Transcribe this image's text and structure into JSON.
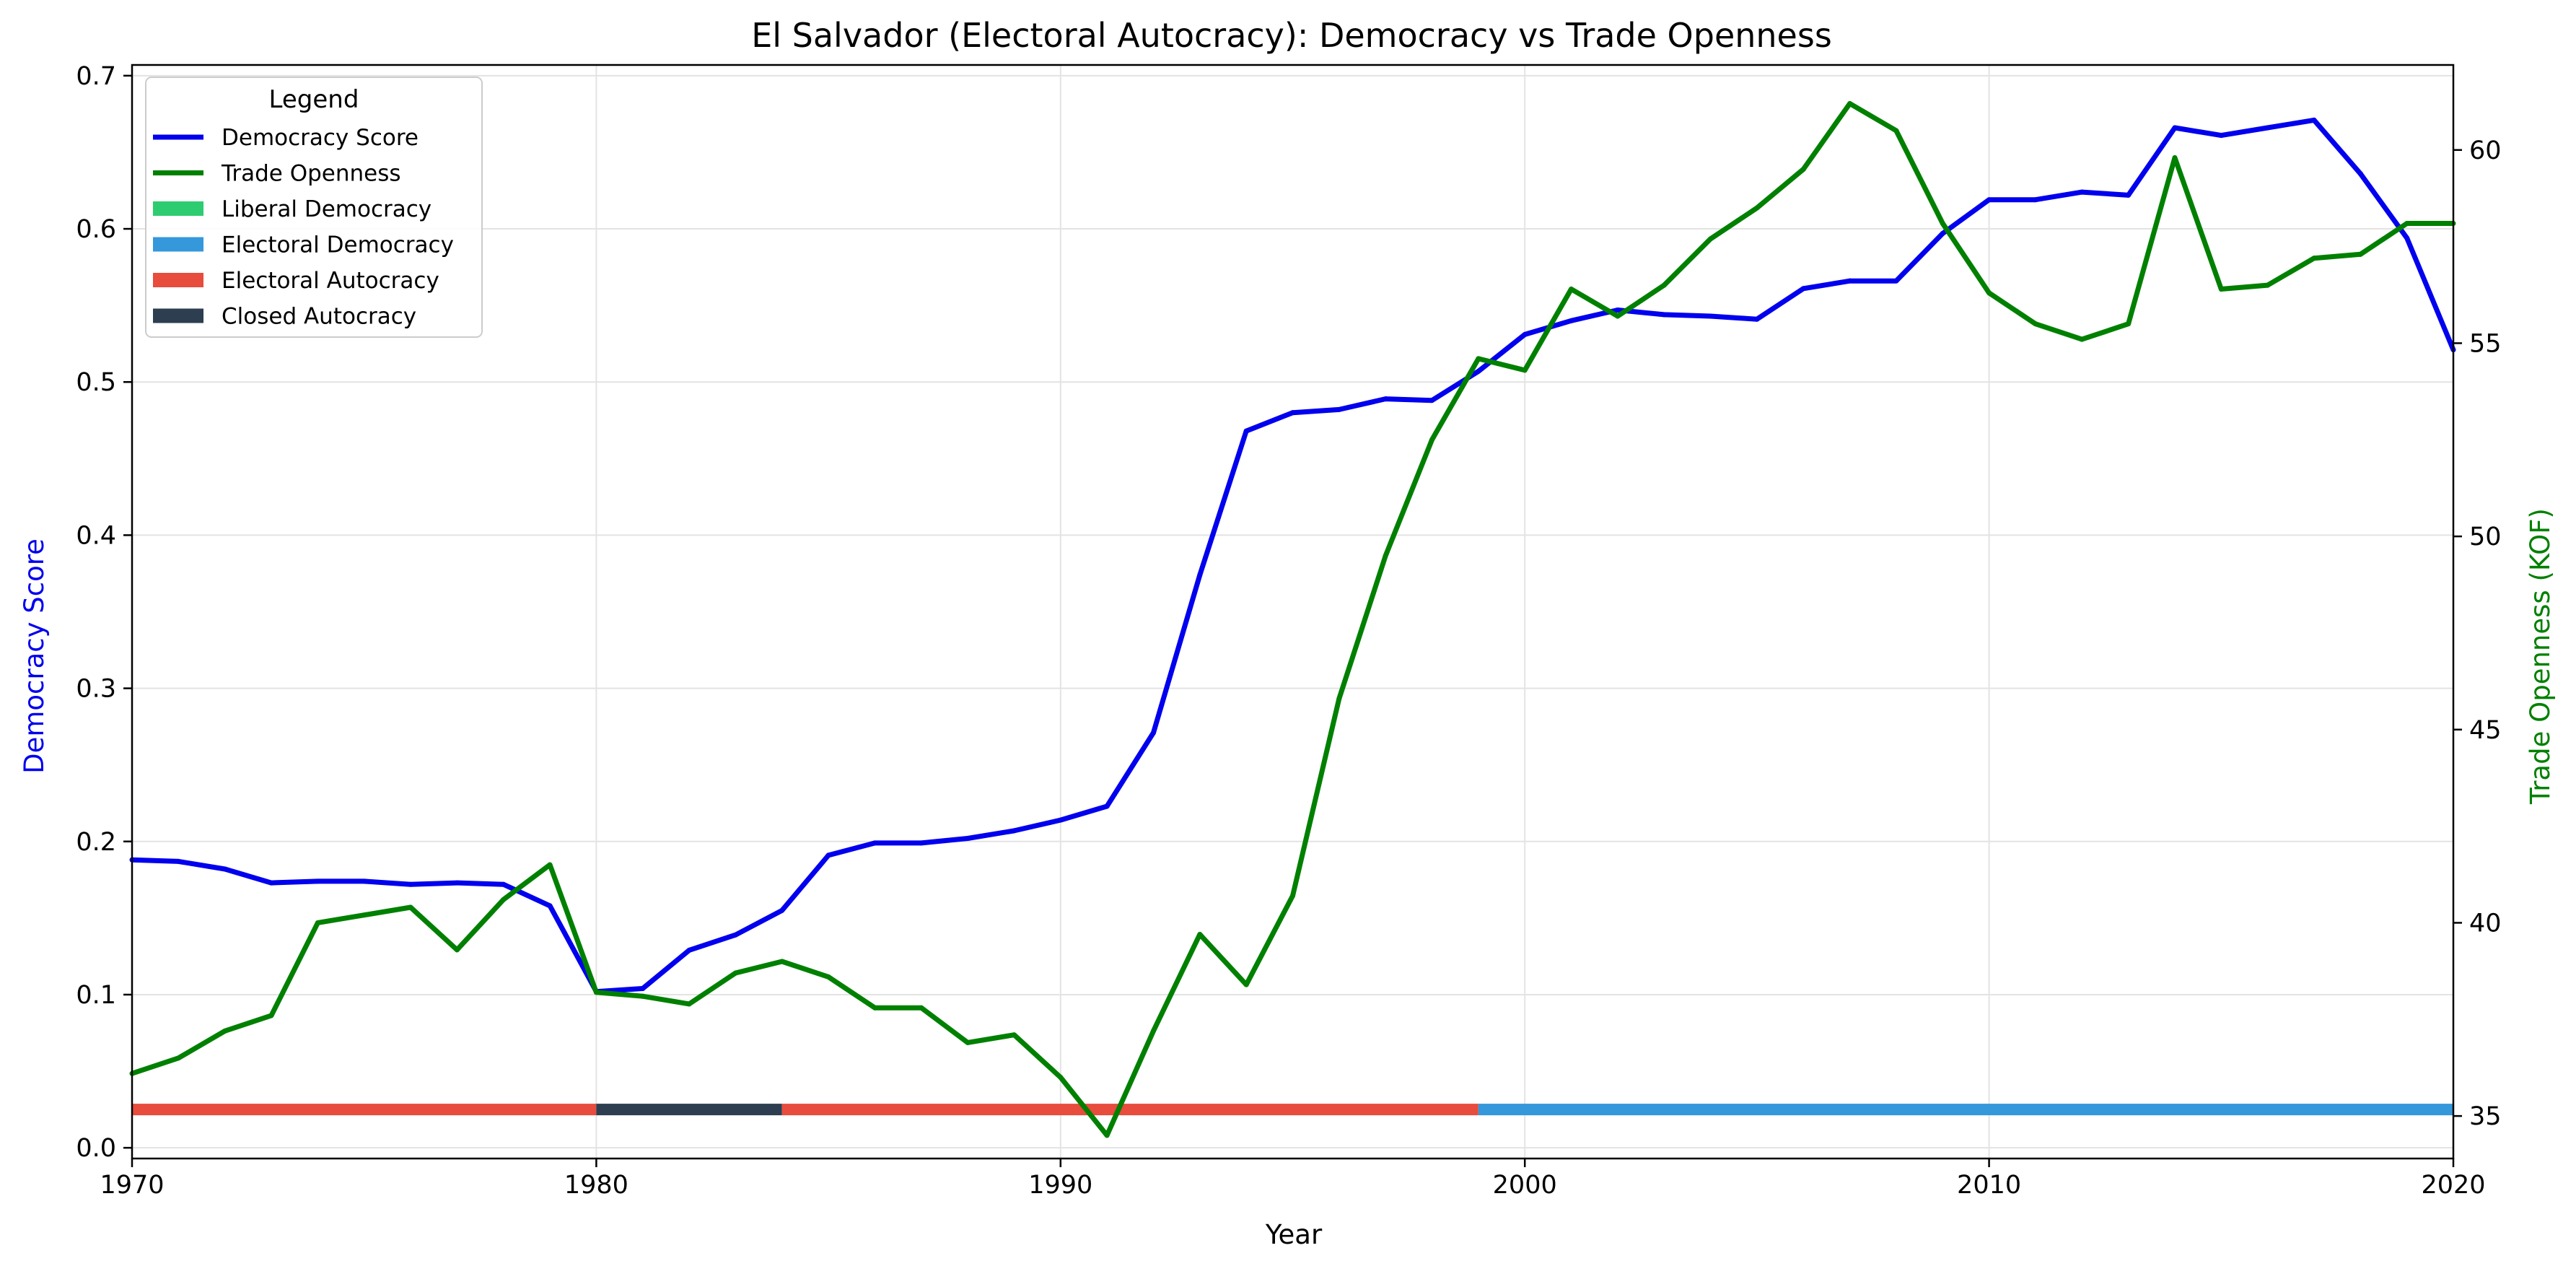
{
  "chart_data": {
    "type": "line",
    "title": "El Salvador (Electoral Autocracy): Democracy vs Trade Openness",
    "xlabel": "Year",
    "ylabel_left": "Democracy Score",
    "ylabel_right": "Trade Openness (KOF)",
    "xlim": [
      1970,
      2020
    ],
    "ylim_left": [
      -0.007,
      0.707
    ],
    "ylim_right": [
      33.9,
      62.2
    ],
    "x_ticks": [
      "1970",
      "1980",
      "1990",
      "2000",
      "2010",
      "2020"
    ],
    "y_ticks_left": [
      "0.0",
      "0.1",
      "0.2",
      "0.3",
      "0.4",
      "0.5",
      "0.6",
      "0.7"
    ],
    "y_ticks_right": [
      "35",
      "40",
      "45",
      "50",
      "55",
      "60"
    ],
    "grid": true,
    "legend_title": "Legend",
    "legend_position": "top-left",
    "x": [
      1970,
      1971,
      1972,
      1973,
      1974,
      1975,
      1976,
      1977,
      1978,
      1979,
      1980,
      1981,
      1982,
      1983,
      1984,
      1985,
      1986,
      1987,
      1988,
      1989,
      1990,
      1991,
      1992,
      1993,
      1994,
      1995,
      1996,
      1997,
      1998,
      1999,
      2000,
      2001,
      2002,
      2003,
      2004,
      2005,
      2006,
      2007,
      2008,
      2009,
      2010,
      2011,
      2012,
      2013,
      2014,
      2015,
      2016,
      2017,
      2018,
      2019,
      2020
    ],
    "series": [
      {
        "name": "Democracy Score",
        "axis": "left",
        "color": "#0000ee",
        "values": [
          0.188,
          0.187,
          0.182,
          0.173,
          0.174,
          0.174,
          0.172,
          0.173,
          0.172,
          0.158,
          0.102,
          0.104,
          0.129,
          0.139,
          0.155,
          0.191,
          0.199,
          0.199,
          0.202,
          0.207,
          0.214,
          0.223,
          0.271,
          0.374,
          0.468,
          0.48,
          0.482,
          0.489,
          0.488,
          0.507,
          0.531,
          0.54,
          0.547,
          0.544,
          0.543,
          0.541,
          0.561,
          0.566,
          0.566,
          0.597,
          0.619,
          0.619,
          0.624,
          0.622,
          0.666,
          0.661,
          0.666,
          0.671,
          0.636,
          0.594,
          0.521
        ]
      },
      {
        "name": "Trade Openness",
        "axis": "right",
        "color": "#008000",
        "values": [
          36.1,
          36.5,
          37.2,
          37.6,
          40.0,
          40.2,
          40.4,
          39.3,
          40.6,
          41.5,
          38.2,
          38.1,
          37.9,
          38.7,
          39.0,
          38.6,
          37.8,
          37.8,
          36.9,
          37.1,
          36.0,
          34.5,
          37.2,
          39.7,
          38.4,
          40.7,
          45.8,
          49.5,
          52.5,
          54.6,
          54.3,
          56.4,
          55.7,
          56.5,
          57.7,
          58.5,
          59.5,
          61.2,
          60.5,
          58.1,
          56.3,
          55.5,
          55.1,
          55.5,
          59.8,
          56.4,
          56.5,
          57.2,
          57.3,
          58.1,
          58.1
        ]
      }
    ],
    "regimes": {
      "legend": [
        {
          "label": "Liberal Democracy",
          "color": "#2ecc71"
        },
        {
          "label": "Electoral Democracy",
          "color": "#3498db"
        },
        {
          "label": "Electoral Autocracy",
          "color": "#e74c3c"
        },
        {
          "label": "Closed Autocracy",
          "color": "#2c3e50"
        }
      ],
      "periods": [
        {
          "start": 1970,
          "end": 1980,
          "regime": "Electoral Autocracy"
        },
        {
          "start": 1980,
          "end": 1984,
          "regime": "Closed Autocracy"
        },
        {
          "start": 1984,
          "end": 1999,
          "regime": "Electoral Autocracy"
        },
        {
          "start": 1999,
          "end": 2020,
          "regime": "Electoral Democracy"
        }
      ],
      "band_level": 0.025
    }
  }
}
